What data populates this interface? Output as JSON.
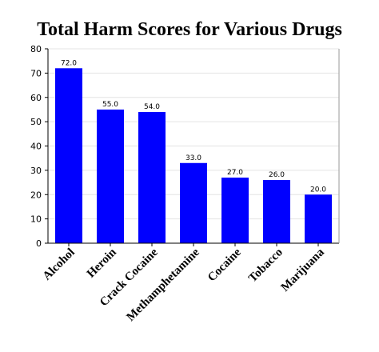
{
  "chart_data": {
    "type": "bar",
    "title": "Total Harm Scores for Various Drugs",
    "xlabel": "",
    "ylabel": "",
    "categories": [
      "Alcohol",
      "Heroin",
      "Crack Cocaine",
      "Methamphetamine",
      "Cocaine",
      "Tobacco",
      "Marijuana"
    ],
    "values": [
      72.0,
      55.0,
      54.0,
      33.0,
      27.0,
      26.0,
      20.0
    ],
    "data_labels": [
      "72.0",
      "55.0",
      "54.0",
      "33.0",
      "27.0",
      "26.0",
      "20.0"
    ],
    "ylim": [
      0,
      80
    ],
    "yticks": [
      0,
      10,
      20,
      30,
      40,
      50,
      60,
      70,
      80
    ],
    "grid": true,
    "bar_color": "#0000ff",
    "grid_color": "#e4e4e4",
    "axis_color": "#000000"
  }
}
